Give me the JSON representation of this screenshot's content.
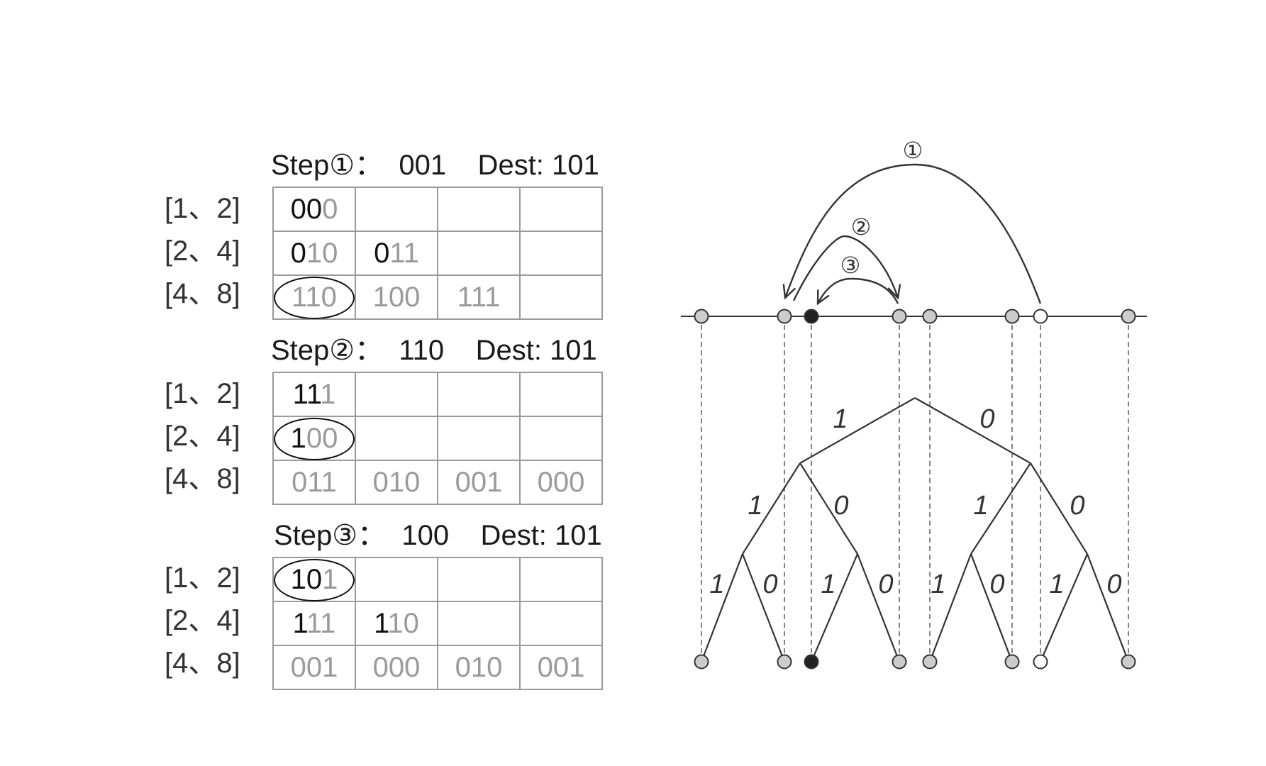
{
  "steps": [
    {
      "title": "Step①：  001    Dest: 101",
      "rows": [
        {
          "label": "[1、2]",
          "cells": [
            {
              "d": "00",
              "l": "0",
              "c": false
            },
            {
              "d": "",
              "l": "",
              "c": false
            },
            {
              "d": "",
              "l": "",
              "c": false
            },
            {
              "d": "",
              "l": "",
              "c": false
            }
          ]
        },
        {
          "label": "[2、4]",
          "cells": [
            {
              "d": "0",
              "l": "10",
              "c": false
            },
            {
              "d": "0",
              "l": "11",
              "c": false
            },
            {
              "d": "",
              "l": "",
              "c": false
            },
            {
              "d": "",
              "l": "",
              "c": false
            }
          ]
        },
        {
          "label": "[4、8]",
          "cells": [
            {
              "d": "",
              "l": "110",
              "c": true
            },
            {
              "d": "",
              "l": "100",
              "c": false
            },
            {
              "d": "",
              "l": "111",
              "c": false
            },
            {
              "d": "",
              "l": "",
              "c": false
            }
          ]
        }
      ]
    },
    {
      "title": "Step②：  110    Dest: 101",
      "rows": [
        {
          "label": "[1、2]",
          "cells": [
            {
              "d": "11",
              "l": "1",
              "c": false
            },
            {
              "d": "",
              "l": "",
              "c": false
            },
            {
              "d": "",
              "l": "",
              "c": false
            },
            {
              "d": "",
              "l": "",
              "c": false
            }
          ]
        },
        {
          "label": "[2、4]",
          "cells": [
            {
              "d": "1",
              "l": "00",
              "c": true
            },
            {
              "d": "",
              "l": "",
              "c": false
            },
            {
              "d": "",
              "l": "",
              "c": false
            },
            {
              "d": "",
              "l": "",
              "c": false
            }
          ]
        },
        {
          "label": "[4、8]",
          "cells": [
            {
              "d": "",
              "l": "011",
              "c": false
            },
            {
              "d": "",
              "l": "010",
              "c": false
            },
            {
              "d": "",
              "l": "001",
              "c": false
            },
            {
              "d": "",
              "l": "000",
              "c": false
            }
          ]
        }
      ]
    },
    {
      "title": "Step③：  100    Dest: 101",
      "rows": [
        {
          "label": "[1、2]",
          "cells": [
            {
              "d": "10",
              "l": "1",
              "c": true
            },
            {
              "d": "",
              "l": "",
              "c": false
            },
            {
              "d": "",
              "l": "",
              "c": false
            },
            {
              "d": "",
              "l": "",
              "c": false
            }
          ]
        },
        {
          "label": "[2、4]",
          "cells": [
            {
              "d": "1",
              "l": "11",
              "c": false
            },
            {
              "d": "1",
              "l": "10",
              "c": false
            },
            {
              "d": "",
              "l": "",
              "c": false
            },
            {
              "d": "",
              "l": "",
              "c": false
            }
          ]
        },
        {
          "label": "[4、8]",
          "cells": [
            {
              "d": "",
              "l": "001",
              "c": false
            },
            {
              "d": "",
              "l": "000",
              "c": false
            },
            {
              "d": "",
              "l": "010",
              "c": false
            },
            {
              "d": "",
              "l": "001",
              "c": false
            }
          ]
        }
      ]
    }
  ],
  "tree": {
    "edge_labels": {
      "level1": [
        "1",
        "0"
      ],
      "level2": [
        "1",
        "0",
        "1",
        "0"
      ],
      "level3": [
        "1",
        "0",
        "1",
        "0",
        "1",
        "0",
        "1",
        "0"
      ]
    },
    "hop_labels": [
      "①",
      "②",
      "③"
    ],
    "node_states": [
      "gray",
      "gray",
      "black",
      "gray",
      "gray",
      "gray",
      "white",
      "gray"
    ],
    "colors": {
      "gray": "#cccccc",
      "black": "#222222",
      "white": "#ffffff",
      "line": "#333333",
      "dashed": "#777777"
    }
  }
}
